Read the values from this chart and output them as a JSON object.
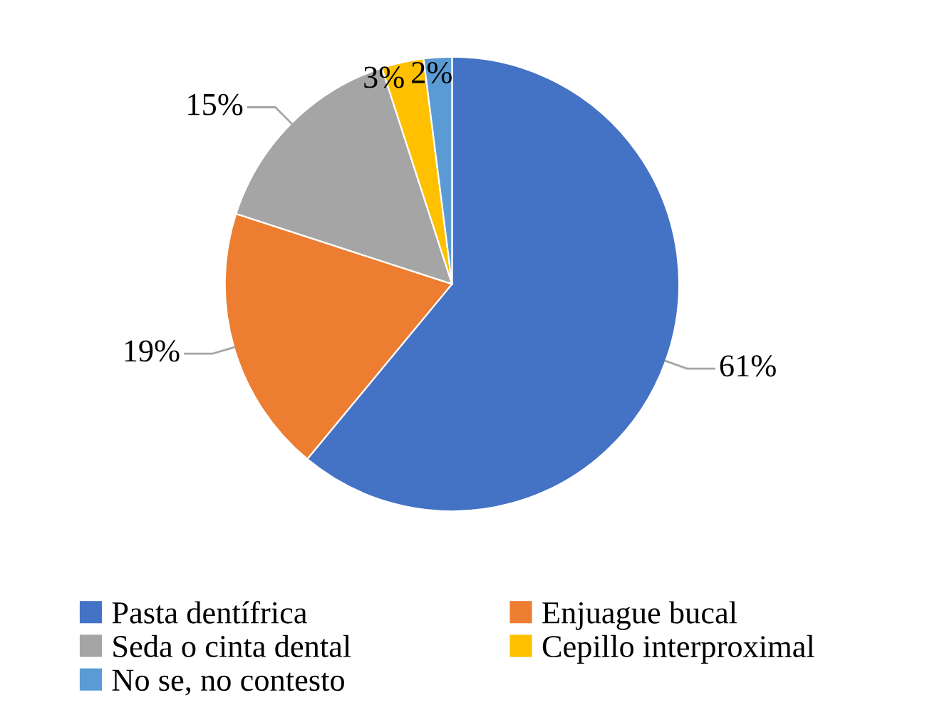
{
  "chart_data": {
    "type": "pie",
    "categories": [
      "Pasta dentífrica",
      "Enjuague bucal",
      "Seda o cinta dental",
      "Cepillo interproximal",
      "No se, no contesto"
    ],
    "values": [
      61,
      19,
      15,
      3,
      2
    ],
    "colors": [
      "#4472c4",
      "#ed7d31",
      "#a5a5a5",
      "#ffc000",
      "#5b9bd5"
    ],
    "value_labels": [
      "61%",
      "19%",
      "15%",
      "3%",
      "2%"
    ],
    "legend": "bottom"
  }
}
